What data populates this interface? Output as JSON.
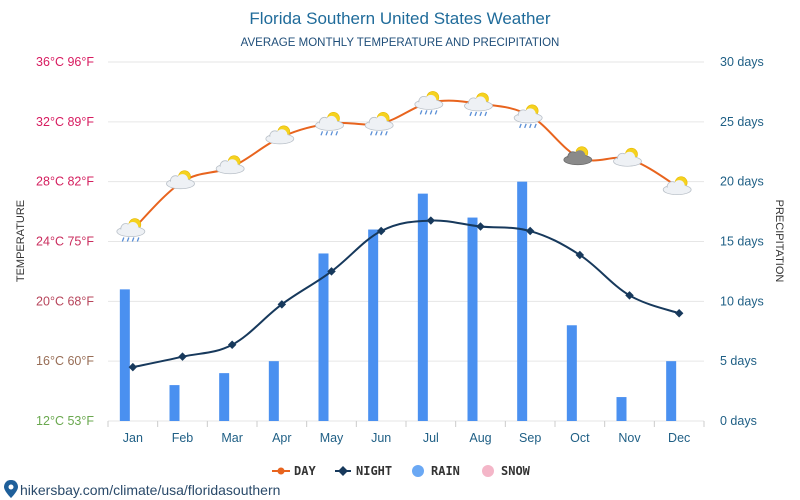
{
  "chart_data": {
    "type": "line",
    "title": "Florida Southern United States Weather",
    "subtitle": "AVERAGE MONTHLY TEMPERATURE AND PRECIPITATION",
    "categories": [
      "Jan",
      "Feb",
      "Mar",
      "Apr",
      "May",
      "Jun",
      "Jul",
      "Aug",
      "Sep",
      "Oct",
      "Nov",
      "Dec"
    ],
    "ylabel_left": "TEMPERATURE",
    "ylabel_right": "PRECIPITATION",
    "ylim_left": [
      12,
      36
    ],
    "ylim_right": [
      0,
      30
    ],
    "left_ticks": [
      {
        "value": 36,
        "label": "36°C 96°F"
      },
      {
        "value": 32,
        "label": "32°C 89°F"
      },
      {
        "value": 28,
        "label": "28°C 82°F"
      },
      {
        "value": 24,
        "label": "24°C 75°F"
      },
      {
        "value": 20,
        "label": "20°C 68°F"
      },
      {
        "value": 16,
        "label": "16°C 60°F"
      },
      {
        "value": 12,
        "label": "12°C 53°F"
      }
    ],
    "right_ticks": [
      {
        "value": 30,
        "label": "30 days"
      },
      {
        "value": 25,
        "label": "25 days"
      },
      {
        "value": 20,
        "label": "20 days"
      },
      {
        "value": 15,
        "label": "15 days"
      },
      {
        "value": 10,
        "label": "10 days"
      },
      {
        "value": 5,
        "label": "5 days"
      },
      {
        "value": 0,
        "label": "0 days"
      }
    ],
    "series": [
      {
        "name": "DAY",
        "type": "line",
        "axis": "left",
        "color": "#e8641e",
        "values": [
          24.8,
          28.0,
          29.0,
          31.0,
          31.9,
          31.9,
          33.3,
          33.2,
          32.4,
          29.6,
          29.5,
          27.6
        ]
      },
      {
        "name": "NIGHT",
        "type": "line",
        "axis": "left",
        "color": "#17395c",
        "values": [
          15.6,
          16.3,
          17.1,
          19.8,
          22.0,
          24.7,
          25.4,
          25.0,
          24.7,
          23.1,
          20.4,
          19.2
        ]
      },
      {
        "name": "RAIN",
        "type": "bar",
        "axis": "right",
        "color": "#4a90f0",
        "values": [
          11,
          3,
          4,
          5,
          14,
          16,
          19,
          17,
          20,
          8,
          2,
          5
        ]
      },
      {
        "name": "SNOW",
        "type": "bar",
        "axis": "right",
        "color": "#f4b6c8",
        "values": [
          0,
          0,
          0,
          0,
          0,
          0,
          0,
          0,
          0,
          0,
          0,
          0
        ]
      }
    ],
    "weather_icons": [
      "partly-cloudy-rain",
      "partly-cloudy",
      "partly-cloudy",
      "partly-cloudy",
      "partly-cloudy-rain",
      "partly-cloudy-rain",
      "partly-cloudy-rain",
      "partly-cloudy-rain",
      "partly-cloudy-rain",
      "partly-cloudy-dark",
      "partly-cloudy",
      "partly-cloudy"
    ],
    "grid": true,
    "legend_position": "bottom-center"
  },
  "colors": {
    "title": "#1f6b9a",
    "left_tick_top": "#d81b60",
    "left_tick_bottom": "#6aa84f",
    "right_tick": "#1f5f85",
    "grid": "#e6e6e6"
  },
  "footer": {
    "text": "hikersbay.com/climate/usa/floridasouthern"
  }
}
